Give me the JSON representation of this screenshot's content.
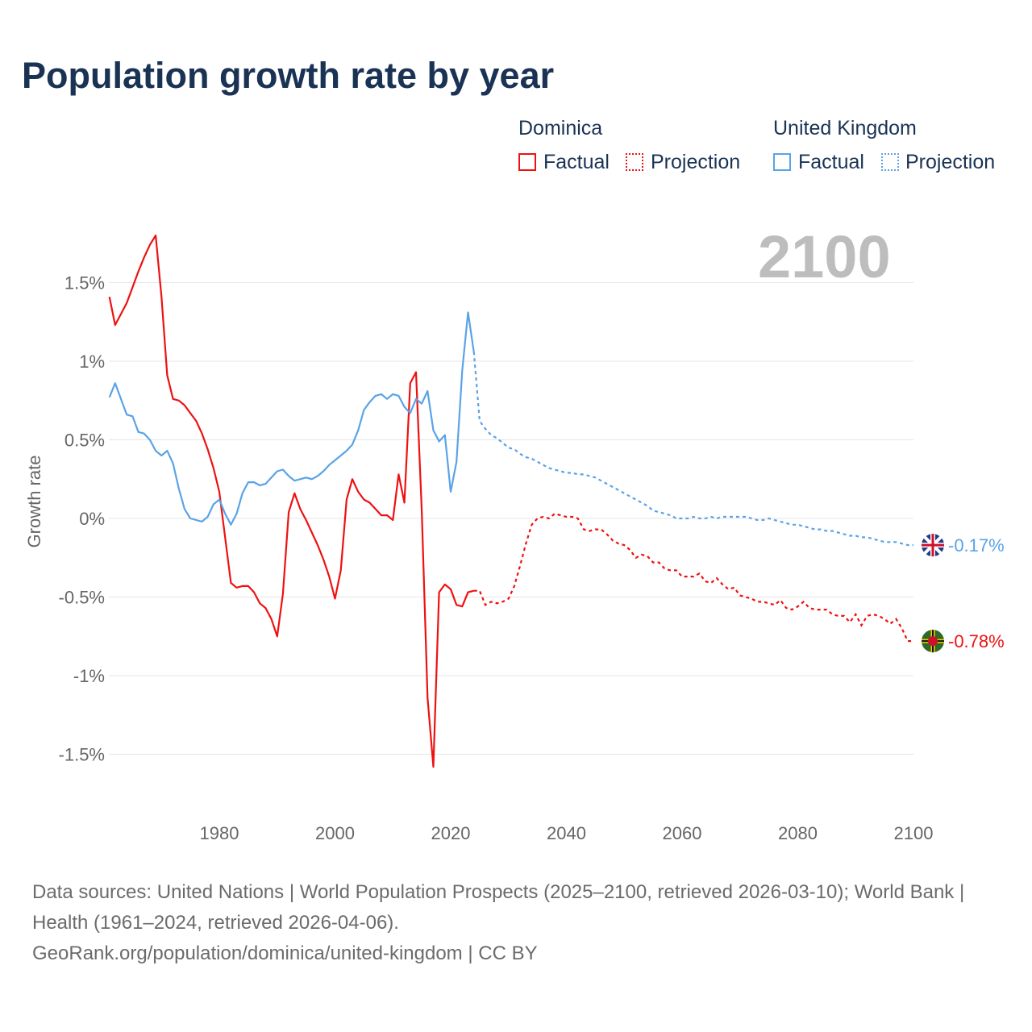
{
  "title": "Population growth rate by year",
  "legend": {
    "groups": [
      {
        "name": "Dominica",
        "factual": "Factual",
        "projection": "Projection",
        "color": "#ee1111"
      },
      {
        "name": "United Kingdom",
        "factual": "Factual",
        "projection": "Projection",
        "color": "#5aa3e6"
      }
    ]
  },
  "current_year": "2100",
  "source_lines": [
    "Data sources: United Nations | World Population Prospects (2025–2100, retrieved 2026-03-10); World Bank | Health (1961–2024, retrieved 2026-04-06).",
    "GeoRank.org/population/dominica/united-kingdom | CC BY"
  ],
  "chart_data": {
    "type": "line",
    "title": "Population growth rate by year",
    "ylabel": "Growth rate",
    "xlabel": "",
    "xlim": [
      1961,
      2100
    ],
    "ylim": [
      -1.75,
      1.85
    ],
    "x_ticks": [
      1980,
      2000,
      2020,
      2040,
      2060,
      2080,
      2100
    ],
    "y_ticks": [
      {
        "v": 1.5,
        "label": "1.5%"
      },
      {
        "v": 1,
        "label": "1%"
      },
      {
        "v": 0.5,
        "label": "0.5%"
      },
      {
        "v": 0,
        "label": "0%"
      },
      {
        "v": -0.5,
        "label": "-0.5%"
      },
      {
        "v": -1,
        "label": "-1%"
      },
      {
        "v": -1.5,
        "label": "-1.5%"
      }
    ],
    "grid": true,
    "series": [
      {
        "name": "Dominica",
        "color": "#ee1111",
        "end_label": "-0.78%",
        "factual_start": 1961,
        "factual": [
          1.41,
          1.23,
          1.3,
          1.37,
          1.47,
          1.57,
          1.66,
          1.74,
          1.8,
          1.41,
          0.91,
          0.76,
          0.75,
          0.72,
          0.67,
          0.62,
          0.54,
          0.44,
          0.32,
          0.17,
          -0.12,
          -0.41,
          -0.44,
          -0.43,
          -0.43,
          -0.47,
          -0.54,
          -0.57,
          -0.64,
          -0.75,
          -0.48,
          0.04,
          0.16,
          0.06,
          -0.01,
          -0.09,
          -0.17,
          -0.26,
          -0.37,
          -0.51,
          -0.33,
          0.12,
          0.25,
          0.17,
          0.12,
          0.1,
          0.06,
          0.02,
          0.02,
          -0.01,
          0.28,
          0.1,
          0.86,
          0.93,
          0.05,
          -1.14,
          -1.58,
          -0.47,
          -0.42,
          -0.45,
          -0.55,
          -0.56,
          -0.47,
          -0.46
        ],
        "projection_start": 2024,
        "projection": [
          -0.46,
          -0.46,
          -0.55,
          -0.53,
          -0.54,
          -0.53,
          -0.51,
          -0.43,
          -0.3,
          -0.16,
          -0.04,
          0.0,
          0.01,
          0.0,
          0.03,
          0.02,
          0.01,
          0.01,
          0.0,
          -0.07,
          -0.08,
          -0.07,
          -0.07,
          -0.1,
          -0.14,
          -0.16,
          -0.17,
          -0.2,
          -0.25,
          -0.23,
          -0.24,
          -0.28,
          -0.28,
          -0.32,
          -0.33,
          -0.33,
          -0.37,
          -0.37,
          -0.37,
          -0.35,
          -0.4,
          -0.41,
          -0.38,
          -0.42,
          -0.45,
          -0.44,
          -0.49,
          -0.5,
          -0.51,
          -0.53,
          -0.53,
          -0.54,
          -0.55,
          -0.52,
          -0.57,
          -0.58,
          -0.56,
          -0.53,
          -0.57,
          -0.58,
          -0.58,
          -0.58,
          -0.61,
          -0.62,
          -0.62,
          -0.66,
          -0.61,
          -0.68,
          -0.62,
          -0.61,
          -0.62,
          -0.64,
          -0.67,
          -0.64,
          -0.7,
          -0.78,
          -0.78
        ]
      },
      {
        "name": "United Kingdom",
        "color": "#5aa3e6",
        "end_label": "-0.17%",
        "factual_start": 1961,
        "factual": [
          0.77,
          0.86,
          0.76,
          0.66,
          0.65,
          0.55,
          0.54,
          0.5,
          0.43,
          0.4,
          0.43,
          0.35,
          0.19,
          0.06,
          0.0,
          -0.01,
          -0.02,
          0.01,
          0.09,
          0.12,
          0.03,
          -0.04,
          0.03,
          0.16,
          0.23,
          0.23,
          0.21,
          0.22,
          0.26,
          0.3,
          0.31,
          0.27,
          0.24,
          0.25,
          0.26,
          0.25,
          0.27,
          0.3,
          0.34,
          0.37,
          0.4,
          0.43,
          0.47,
          0.56,
          0.69,
          0.74,
          0.78,
          0.79,
          0.76,
          0.79,
          0.78,
          0.71,
          0.67,
          0.76,
          0.73,
          0.81,
          0.56,
          0.49,
          0.53,
          0.17,
          0.36,
          0.94,
          1.31,
          1.06
        ],
        "projection_start": 2024,
        "projection": [
          1.06,
          0.62,
          0.57,
          0.53,
          0.51,
          0.48,
          0.45,
          0.44,
          0.41,
          0.39,
          0.38,
          0.36,
          0.34,
          0.32,
          0.31,
          0.3,
          0.29,
          0.29,
          0.28,
          0.28,
          0.27,
          0.26,
          0.24,
          0.22,
          0.2,
          0.18,
          0.16,
          0.14,
          0.12,
          0.1,
          0.08,
          0.05,
          0.04,
          0.03,
          0.02,
          0.0,
          0.0,
          0.0,
          0.01,
          0.0,
          0.0,
          0.01,
          0.0,
          0.01,
          0.01,
          0.01,
          0.01,
          0.01,
          0.0,
          -0.01,
          -0.01,
          0.0,
          -0.01,
          -0.02,
          -0.03,
          -0.04,
          -0.04,
          -0.05,
          -0.06,
          -0.07,
          -0.07,
          -0.08,
          -0.08,
          -0.09,
          -0.1,
          -0.11,
          -0.11,
          -0.12,
          -0.12,
          -0.13,
          -0.14,
          -0.15,
          -0.15,
          -0.15,
          -0.16,
          -0.17,
          -0.17
        ]
      }
    ]
  }
}
